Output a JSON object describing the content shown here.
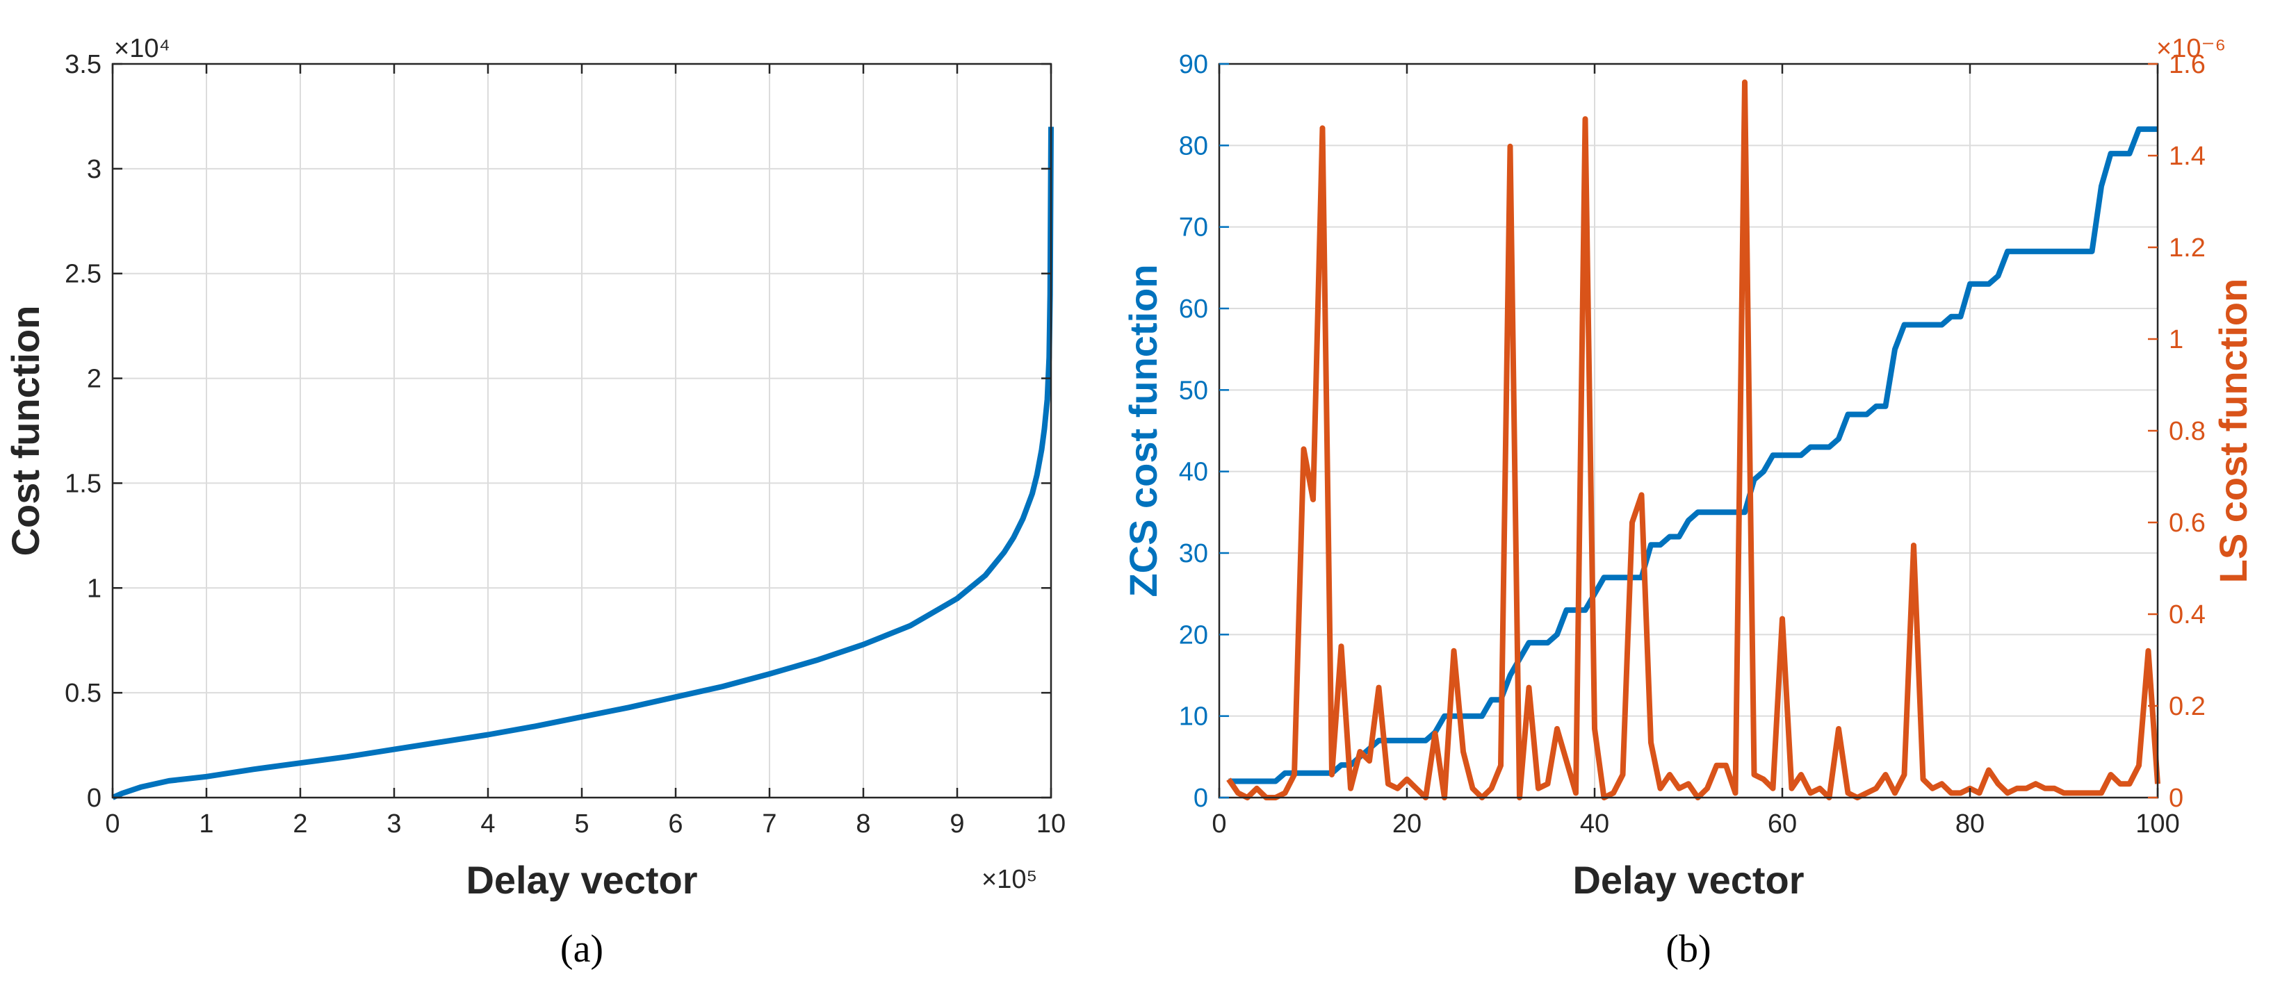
{
  "chart_data": [
    {
      "type": "line",
      "panel_label": "(a)",
      "xlabel": "Delay vector",
      "ylabel": "Cost function",
      "x_exponent": "×10⁵",
      "y_exponent": "×10⁴",
      "xlim": [
        0,
        1000000
      ],
      "ylim": [
        0,
        35000
      ],
      "x_ticks": [
        0,
        100000,
        200000,
        300000,
        400000,
        500000,
        600000,
        700000,
        800000,
        900000,
        1000000
      ],
      "x_tick_labels": [
        "0",
        "1",
        "2",
        "3",
        "4",
        "5",
        "6",
        "7",
        "8",
        "9",
        "10"
      ],
      "y_ticks": [
        0,
        5000,
        10000,
        15000,
        20000,
        25000,
        30000,
        35000
      ],
      "y_tick_labels": [
        "0",
        "0.5",
        "1",
        "1.5",
        "2",
        "2.5",
        "3",
        "3.5"
      ],
      "grid": true,
      "colors": {
        "series": "#0072BD",
        "axis": "#262626",
        "grid": "#dcdcdc"
      },
      "series": [
        {
          "x": [
            0,
            10000,
            30000,
            60000,
            100000,
            150000,
            200000,
            250000,
            300000,
            350000,
            400000,
            450000,
            500000,
            550000,
            600000,
            650000,
            700000,
            750000,
            800000,
            850000,
            900000,
            930000,
            950000,
            960000,
            970000,
            980000,
            985000,
            990000,
            993000,
            996000,
            998000,
            999000,
            1000000
          ],
          "y": [
            0,
            200,
            500,
            800,
            1000,
            1350,
            1650,
            1950,
            2300,
            2650,
            3000,
            3400,
            3850,
            4300,
            4800,
            5300,
            5900,
            6550,
            7300,
            8200,
            9500,
            10600,
            11700,
            12400,
            13300,
            14500,
            15400,
            16600,
            17600,
            19000,
            21000,
            24000,
            32000
          ]
        }
      ]
    },
    {
      "type": "line",
      "panel_label": "(b)",
      "xlabel": "Delay vector",
      "ylabel": "ZCS cost function",
      "y2label": "LS cost function",
      "y2_exponent": "×10⁻⁶",
      "xlim": [
        0,
        100
      ],
      "ylim": [
        0,
        90
      ],
      "y2lim": [
        0,
        1.6
      ],
      "x_ticks": [
        0,
        20,
        40,
        60,
        80,
        100
      ],
      "x_tick_labels": [
        "0",
        "20",
        "40",
        "60",
        "80",
        "100"
      ],
      "y_ticks": [
        0,
        10,
        20,
        30,
        40,
        50,
        60,
        70,
        80,
        90
      ],
      "y_tick_labels": [
        "0",
        "10",
        "20",
        "30",
        "40",
        "50",
        "60",
        "70",
        "80",
        "90"
      ],
      "y2_ticks": [
        0,
        0.2,
        0.4,
        0.6,
        0.8,
        1,
        1.2,
        1.4,
        1.6
      ],
      "y2_tick_labels": [
        "0",
        "0.2",
        "0.4",
        "0.6",
        "0.8",
        "1",
        "1.2",
        "1.4",
        "1.6"
      ],
      "grid": true,
      "colors": {
        "zcs": "#0072BD",
        "ls": "#D95319",
        "axis": "#262626",
        "grid": "#dcdcdc"
      },
      "series": [
        {
          "axis": "left",
          "x": [
            1,
            2,
            3,
            4,
            5,
            6,
            7,
            8,
            9,
            10,
            11,
            12,
            13,
            14,
            15,
            16,
            17,
            18,
            19,
            20,
            21,
            22,
            23,
            24,
            25,
            26,
            27,
            28,
            29,
            30,
            31,
            32,
            33,
            34,
            35,
            36,
            37,
            38,
            39,
            40,
            41,
            42,
            43,
            44,
            45,
            46,
            47,
            48,
            49,
            50,
            51,
            52,
            53,
            54,
            55,
            56,
            57,
            58,
            59,
            60,
            61,
            62,
            63,
            64,
            65,
            66,
            67,
            68,
            69,
            70,
            71,
            72,
            73,
            74,
            75,
            76,
            77,
            78,
            79,
            80,
            81,
            82,
            83,
            84,
            85,
            86,
            87,
            88,
            89,
            90,
            91,
            92,
            93,
            94,
            95,
            96,
            97,
            98,
            99,
            100
          ],
          "y": [
            2,
            2,
            2,
            2,
            2,
            2,
            3,
            3,
            3,
            3,
            3,
            3,
            4,
            4,
            5,
            6,
            7,
            7,
            7,
            7,
            7,
            7,
            8,
            10,
            10,
            10,
            10,
            10,
            12,
            12,
            15,
            17,
            19,
            19,
            19,
            20,
            23,
            23,
            23,
            25,
            27,
            27,
            27,
            27,
            27,
            31,
            31,
            32,
            32,
            34,
            35,
            35,
            35,
            35,
            35,
            35,
            39,
            40,
            42,
            42,
            42,
            42,
            43,
            43,
            43,
            44,
            47,
            47,
            47,
            48,
            48,
            55,
            58,
            58,
            58,
            58,
            58,
            59,
            59,
            63,
            63,
            63,
            64,
            67,
            67,
            67,
            67,
            67,
            67,
            67,
            67,
            67,
            67,
            75,
            79,
            79,
            79,
            82,
            82,
            82
          ]
        },
        {
          "axis": "right",
          "x": [
            1,
            2,
            3,
            4,
            5,
            6,
            7,
            8,
            9,
            10,
            11,
            12,
            13,
            14,
            15,
            16,
            17,
            18,
            19,
            20,
            21,
            22,
            23,
            24,
            25,
            26,
            27,
            28,
            29,
            30,
            31,
            32,
            33,
            34,
            35,
            36,
            37,
            38,
            39,
            40,
            41,
            42,
            43,
            44,
            45,
            46,
            47,
            48,
            49,
            50,
            51,
            52,
            53,
            54,
            55,
            56,
            57,
            58,
            59,
            60,
            61,
            62,
            63,
            64,
            65,
            66,
            67,
            68,
            69,
            70,
            71,
            72,
            73,
            74,
            75,
            76,
            77,
            78,
            79,
            80,
            81,
            82,
            83,
            84,
            85,
            86,
            87,
            88,
            89,
            90,
            91,
            92,
            93,
            94,
            95,
            96,
            97,
            98,
            99,
            100
          ],
          "y": [
            0.04,
            0.01,
            0.0,
            0.02,
            0.0,
            0.0,
            0.01,
            0.05,
            0.76,
            0.65,
            1.46,
            0.05,
            0.33,
            0.02,
            0.1,
            0.08,
            0.24,
            0.03,
            0.02,
            0.04,
            0.02,
            0.0,
            0.14,
            0.0,
            0.32,
            0.1,
            0.02,
            0.0,
            0.02,
            0.07,
            1.42,
            0.0,
            0.24,
            0.02,
            0.03,
            0.15,
            0.08,
            0.01,
            1.48,
            0.15,
            0.0,
            0.01,
            0.05,
            0.6,
            0.66,
            0.12,
            0.02,
            0.05,
            0.02,
            0.03,
            0.0,
            0.02,
            0.07,
            0.07,
            0.01,
            1.56,
            0.05,
            0.04,
            0.02,
            0.39,
            0.02,
            0.05,
            0.01,
            0.02,
            0.0,
            0.15,
            0.01,
            0.0,
            0.01,
            0.02,
            0.05,
            0.01,
            0.05,
            0.55,
            0.04,
            0.02,
            0.03,
            0.01,
            0.01,
            0.02,
            0.01,
            0.06,
            0.03,
            0.01,
            0.02,
            0.02,
            0.03,
            0.02,
            0.02,
            0.01,
            0.01,
            0.01,
            0.01,
            0.01,
            0.05,
            0.03,
            0.03,
            0.07,
            0.32,
            0.03
          ]
        }
      ]
    }
  ]
}
